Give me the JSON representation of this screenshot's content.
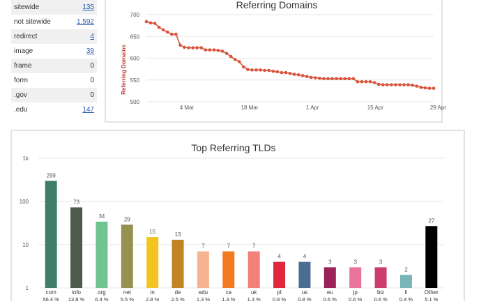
{
  "stats": {
    "rows": [
      {
        "label": "sitewide",
        "value": "135",
        "link": true
      },
      {
        "label": "not sitewide",
        "value": "1,592",
        "link": true
      },
      {
        "label": "redirect",
        "value": "4",
        "link": true
      },
      {
        "label": "image",
        "value": "39",
        "link": true
      },
      {
        "label": "frame",
        "value": "0",
        "link": false
      },
      {
        "label": "form",
        "value": "0",
        "link": false
      },
      {
        "label": ".gov",
        "value": "0",
        "link": false
      },
      {
        "label": ".edu",
        "value": "147",
        "link": true
      }
    ]
  },
  "colors": {
    "line": "#d9533a",
    "grid": "#e6e6e6",
    "link": "#2a5db0"
  },
  "chart_data": [
    {
      "type": "line",
      "title": "Referring Domains",
      "ylabel": "Referring Domains",
      "ylim": [
        500,
        700
      ],
      "yticks": [
        500,
        550,
        600,
        650,
        700
      ],
      "xlim": [
        0,
        64
      ],
      "xticks": [
        {
          "x": 9,
          "label": "4 Mar"
        },
        {
          "x": 23,
          "label": "18 Mar"
        },
        {
          "x": 37,
          "label": "1 Apr"
        },
        {
          "x": 51,
          "label": "15 Apr"
        },
        {
          "x": 65,
          "label": "29 Apr"
        }
      ],
      "series": [
        {
          "values": [
            684,
            681,
            680,
            671,
            665,
            660,
            655,
            655,
            630,
            625,
            624,
            624,
            624,
            624,
            619,
            619,
            619,
            618,
            616,
            611,
            604,
            597,
            592,
            580,
            574,
            573,
            573,
            573,
            572,
            572,
            570,
            569,
            567,
            567,
            565,
            563,
            562,
            560,
            558,
            556,
            555,
            554,
            553,
            553,
            553,
            553,
            553,
            553,
            553,
            553,
            546,
            546,
            546,
            546,
            544,
            540,
            539,
            539,
            539,
            539,
            539,
            539,
            539,
            538,
            536,
            533,
            532,
            531,
            531
          ]
        }
      ]
    },
    {
      "type": "bar",
      "title": "Top Referring TLDs",
      "yscale": "log",
      "ylim": [
        1,
        1000
      ],
      "ytick_labels": [
        "1k",
        "100",
        "10",
        "1"
      ],
      "categories": [
        "com",
        "info",
        "org",
        "net",
        "in",
        "de",
        "edu",
        "ca",
        "uk",
        "pl",
        "us",
        "eu",
        "jp",
        "biz",
        "li",
        "Other"
      ],
      "values": [
        299,
        73,
        34,
        29,
        15,
        13,
        7,
        7,
        7,
        4,
        4,
        3,
        3,
        3,
        2,
        27
      ],
      "value_labels": [
        "299",
        "73",
        "34",
        "29",
        "15",
        "13",
        "7",
        "7",
        "7",
        "4",
        "4",
        "3",
        "3",
        "3",
        "2",
        "27"
      ],
      "percents": [
        "56.4 %",
        "13.8 %",
        "6.4 %",
        "5.5 %",
        "2.8 %",
        "2.5 %",
        "1.3 %",
        "1.3 %",
        "1.3 %",
        "0.8 %",
        "0.8 %",
        "0.6 %",
        "0.6 %",
        "0.6 %",
        "0.4 %",
        "5.1 %"
      ],
      "colors": [
        "#3f7f6a",
        "#4e5a4b",
        "#6fc48f",
        "#959150",
        "#f0c520",
        "#bf8424",
        "#f5b48f",
        "#f47a1f",
        "#f28078",
        "#e2263e",
        "#4a6d94",
        "#9b2158",
        "#e8739d",
        "#cc3d6f",
        "#78b5b7",
        "#000000"
      ]
    }
  ]
}
